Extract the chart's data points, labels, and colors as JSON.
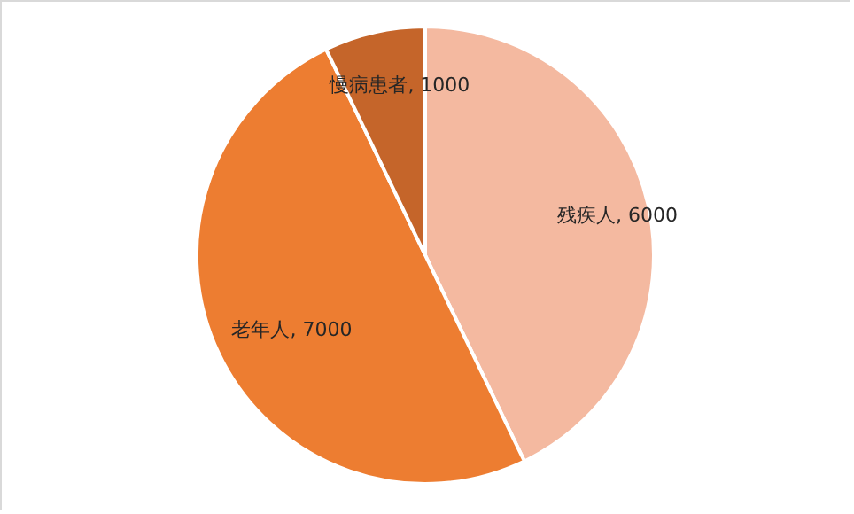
{
  "chart_data": {
    "type": "pie",
    "categories": [
      "残疾人",
      "老年人",
      "慢病患者"
    ],
    "values": [
      6000,
      7000,
      1000
    ],
    "colors": [
      "#f4b9a0",
      "#ed7d31",
      "#c5652a"
    ],
    "value_labels": [
      ", 6000",
      ", 7000",
      ", 1000"
    ]
  }
}
